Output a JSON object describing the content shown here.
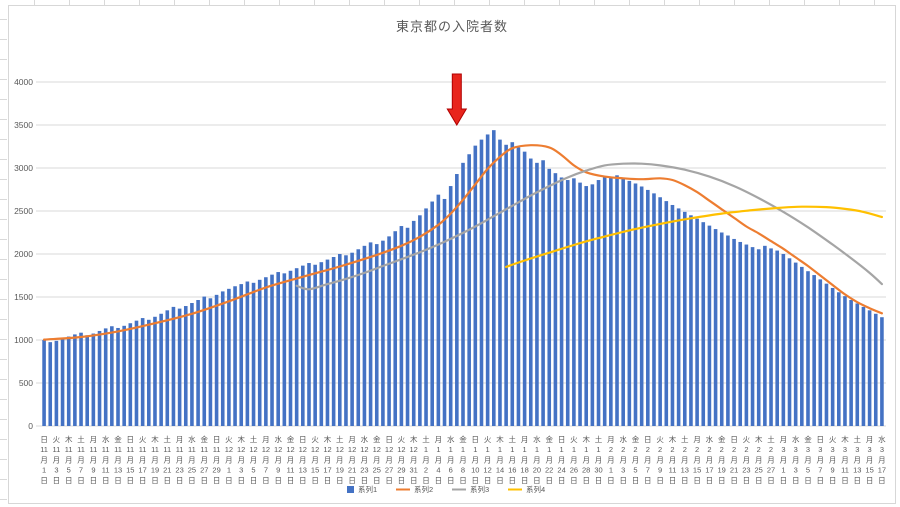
{
  "chart_data": {
    "type": "bar",
    "title": "東京都の入院者数",
    "grid": true,
    "legend_position": "bottom",
    "colors": {
      "grid": "#d9d9d9",
      "axis_text": "#595959",
      "title_text": "#595959"
    },
    "y_axis": {
      "min": 0,
      "max": 4000,
      "step": 500,
      "tick_labels": [
        "0",
        "500",
        "1000",
        "1500",
        "2000",
        "2500",
        "3000",
        "3500",
        "4000"
      ]
    },
    "x_axis": {
      "interval_days": 2,
      "tick_labels": [
        [
          "日",
          "11",
          "月",
          "1",
          "日"
        ],
        [
          "火",
          "11",
          "月",
          "3",
          "日"
        ],
        [
          "木",
          "11",
          "月",
          "5",
          "日"
        ],
        [
          "土",
          "11",
          "月",
          "7",
          "日"
        ],
        [
          "月",
          "11",
          "月",
          "9",
          "日"
        ],
        [
          "水",
          "11",
          "月",
          "11",
          "日"
        ],
        [
          "金",
          "11",
          "月",
          "13",
          "日"
        ],
        [
          "日",
          "11",
          "月",
          "15",
          "日"
        ],
        [
          "火",
          "11",
          "月",
          "17",
          "日"
        ],
        [
          "木",
          "11",
          "月",
          "19",
          "日"
        ],
        [
          "土",
          "11",
          "月",
          "21",
          "日"
        ],
        [
          "月",
          "11",
          "月",
          "23",
          "日"
        ],
        [
          "水",
          "11",
          "月",
          "25",
          "日"
        ],
        [
          "金",
          "11",
          "月",
          "27",
          "日"
        ],
        [
          "日",
          "11",
          "月",
          "29",
          "日"
        ],
        [
          "火",
          "12",
          "月",
          "1",
          "日"
        ],
        [
          "木",
          "12",
          "月",
          "3",
          "日"
        ],
        [
          "土",
          "12",
          "月",
          "5",
          "日"
        ],
        [
          "月",
          "12",
          "月",
          "7",
          "日"
        ],
        [
          "水",
          "12",
          "月",
          "9",
          "日"
        ],
        [
          "金",
          "12",
          "月",
          "11",
          "日"
        ],
        [
          "日",
          "12",
          "月",
          "13",
          "日"
        ],
        [
          "火",
          "12",
          "月",
          "15",
          "日"
        ],
        [
          "木",
          "12",
          "月",
          "17",
          "日"
        ],
        [
          "土",
          "12",
          "月",
          "19",
          "日"
        ],
        [
          "月",
          "12",
          "月",
          "21",
          "日"
        ],
        [
          "水",
          "12",
          "月",
          "23",
          "日"
        ],
        [
          "金",
          "12",
          "月",
          "25",
          "日"
        ],
        [
          "日",
          "12",
          "月",
          "27",
          "日"
        ],
        [
          "火",
          "12",
          "月",
          "29",
          "日"
        ],
        [
          "木",
          "12",
          "月",
          "31",
          "日"
        ],
        [
          "土",
          "1",
          "月",
          "2",
          "日"
        ],
        [
          "月",
          "1",
          "月",
          "4",
          "日"
        ],
        [
          "水",
          "1",
          "月",
          "6",
          "日"
        ],
        [
          "金",
          "1",
          "月",
          "8",
          "日"
        ],
        [
          "日",
          "1",
          "月",
          "10",
          "日"
        ],
        [
          "火",
          "1",
          "月",
          "12",
          "日"
        ],
        [
          "木",
          "1",
          "月",
          "14",
          "日"
        ],
        [
          "土",
          "1",
          "月",
          "16",
          "日"
        ],
        [
          "月",
          "1",
          "月",
          "18",
          "日"
        ],
        [
          "水",
          "1",
          "月",
          "20",
          "日"
        ],
        [
          "金",
          "1",
          "月",
          "22",
          "日"
        ],
        [
          "日",
          "1",
          "月",
          "24",
          "日"
        ],
        [
          "火",
          "1",
          "月",
          "26",
          "日"
        ],
        [
          "木",
          "1",
          "月",
          "28",
          "日"
        ],
        [
          "土",
          "1",
          "月",
          "30",
          "日"
        ],
        [
          "月",
          "2",
          "月",
          "1",
          "日"
        ],
        [
          "水",
          "2",
          "月",
          "3",
          "日"
        ],
        [
          "金",
          "2",
          "月",
          "5",
          "日"
        ],
        [
          "日",
          "2",
          "月",
          "7",
          "日"
        ],
        [
          "火",
          "2",
          "月",
          "9",
          "日"
        ],
        [
          "木",
          "2",
          "月",
          "11",
          "日"
        ],
        [
          "土",
          "2",
          "月",
          "13",
          "日"
        ],
        [
          "月",
          "2",
          "月",
          "15",
          "日"
        ],
        [
          "水",
          "2",
          "月",
          "17",
          "日"
        ],
        [
          "金",
          "2",
          "月",
          "19",
          "日"
        ],
        [
          "日",
          "2",
          "月",
          "21",
          "日"
        ],
        [
          "火",
          "2",
          "月",
          "23",
          "日"
        ],
        [
          "木",
          "2",
          "月",
          "25",
          "日"
        ],
        [
          "土",
          "2",
          "月",
          "27",
          "日"
        ],
        [
          "月",
          "3",
          "月",
          "1",
          "日"
        ],
        [
          "水",
          "3",
          "月",
          "3",
          "日"
        ],
        [
          "金",
          "3",
          "月",
          "5",
          "日"
        ],
        [
          "日",
          "3",
          "月",
          "7",
          "日"
        ],
        [
          "火",
          "3",
          "月",
          "9",
          "日"
        ],
        [
          "木",
          "3",
          "月",
          "11",
          "日"
        ],
        [
          "土",
          "3",
          "月",
          "13",
          "日"
        ],
        [
          "月",
          "3",
          "月",
          "15",
          "日"
        ],
        [
          "水",
          "3",
          "月",
          "17",
          "日"
        ]
      ]
    },
    "bar_series": {
      "name": "系列1",
      "color": "#4472C4",
      "values": [
        1000,
        975,
        990,
        1010,
        1040,
        1065,
        1085,
        1055,
        1075,
        1105,
        1135,
        1160,
        1140,
        1165,
        1195,
        1225,
        1255,
        1235,
        1270,
        1305,
        1345,
        1385,
        1365,
        1395,
        1430,
        1465,
        1505,
        1485,
        1525,
        1565,
        1595,
        1625,
        1650,
        1680,
        1665,
        1700,
        1730,
        1760,
        1790,
        1775,
        1805,
        1835,
        1865,
        1895,
        1875,
        1905,
        1935,
        1965,
        2000,
        1985,
        2015,
        2055,
        2095,
        2135,
        2115,
        2155,
        2205,
        2265,
        2325,
        2305,
        2385,
        2450,
        2530,
        2610,
        2690,
        2640,
        2790,
        2930,
        3060,
        3160,
        3260,
        3330,
        3390,
        3440,
        3330,
        3270,
        3300,
        3240,
        3190,
        3110,
        3060,
        3090,
        2990,
        2940,
        2890,
        2860,
        2880,
        2830,
        2790,
        2810,
        2860,
        2900,
        2890,
        2915,
        2880,
        2850,
        2820,
        2785,
        2745,
        2705,
        2660,
        2615,
        2570,
        2530,
        2490,
        2450,
        2410,
        2370,
        2330,
        2290,
        2250,
        2215,
        2175,
        2140,
        2110,
        2080,
        2055,
        2095,
        2065,
        2040,
        2000,
        1950,
        1900,
        1850,
        1800,
        1755,
        1705,
        1655,
        1605,
        1555,
        1510,
        1465,
        1425,
        1385,
        1345,
        1305,
        1265
      ]
    },
    "line_series": [
      {
        "name": "系列2",
        "color": "#ED7D31",
        "points": [
          [
            0,
            1005
          ],
          [
            6,
            1035
          ],
          [
            12,
            1100
          ],
          [
            18,
            1195
          ],
          [
            24,
            1305
          ],
          [
            30,
            1450
          ],
          [
            36,
            1610
          ],
          [
            42,
            1735
          ],
          [
            48,
            1855
          ],
          [
            54,
            1990
          ],
          [
            58,
            2095
          ],
          [
            61,
            2200
          ],
          [
            64,
            2340
          ],
          [
            66,
            2470
          ],
          [
            68,
            2630
          ],
          [
            70,
            2810
          ],
          [
            72,
            2990
          ],
          [
            74,
            3130
          ],
          [
            76,
            3230
          ],
          [
            79,
            3265
          ],
          [
            82,
            3240
          ],
          [
            84,
            3150
          ],
          [
            86,
            3030
          ],
          [
            88,
            2950
          ],
          [
            91,
            2900
          ],
          [
            94,
            2880
          ],
          [
            97,
            2870
          ],
          [
            100,
            2880
          ],
          [
            102,
            2860
          ],
          [
            104,
            2800
          ],
          [
            106,
            2720
          ],
          [
            108,
            2620
          ],
          [
            110,
            2520
          ],
          [
            112,
            2420
          ],
          [
            114,
            2320
          ],
          [
            116,
            2240
          ],
          [
            118,
            2150
          ],
          [
            120,
            2060
          ],
          [
            122,
            1960
          ],
          [
            124,
            1860
          ],
          [
            126,
            1750
          ],
          [
            128,
            1640
          ],
          [
            130,
            1530
          ],
          [
            132,
            1440
          ],
          [
            134,
            1370
          ],
          [
            136,
            1310
          ]
        ]
      },
      {
        "name": "系列3",
        "color": "#A5A5A5",
        "points": [
          [
            41,
            1630
          ],
          [
            43,
            1590
          ],
          [
            46,
            1650
          ],
          [
            49,
            1710
          ],
          [
            52,
            1780
          ],
          [
            55,
            1860
          ],
          [
            58,
            1940
          ],
          [
            61,
            2020
          ],
          [
            64,
            2110
          ],
          [
            67,
            2210
          ],
          [
            70,
            2320
          ],
          [
            73,
            2440
          ],
          [
            76,
            2560
          ],
          [
            79,
            2680
          ],
          [
            82,
            2790
          ],
          [
            85,
            2890
          ],
          [
            88,
            2970
          ],
          [
            91,
            3030
          ],
          [
            94,
            3050
          ],
          [
            97,
            3050
          ],
          [
            100,
            3030
          ],
          [
            104,
            2980
          ],
          [
            108,
            2900
          ],
          [
            112,
            2790
          ],
          [
            116,
            2650
          ],
          [
            120,
            2490
          ],
          [
            124,
            2310
          ],
          [
            128,
            2110
          ],
          [
            131,
            1950
          ],
          [
            134,
            1780
          ],
          [
            136,
            1650
          ]
        ]
      },
      {
        "name": "系列4",
        "color": "#FFC000",
        "points": [
          [
            75,
            1850
          ],
          [
            78,
            1925
          ],
          [
            82,
            2015
          ],
          [
            86,
            2105
          ],
          [
            90,
            2185
          ],
          [
            95,
            2275
          ],
          [
            100,
            2350
          ],
          [
            105,
            2415
          ],
          [
            110,
            2470
          ],
          [
            115,
            2510
          ],
          [
            119,
            2535
          ],
          [
            123,
            2550
          ],
          [
            127,
            2545
          ],
          [
            130,
            2525
          ],
          [
            133,
            2490
          ],
          [
            136,
            2430
          ]
        ]
      }
    ],
    "legend": {
      "entries": [
        {
          "label": "系列1",
          "color": "#4472C4",
          "marker": "bar"
        },
        {
          "label": "系列2",
          "color": "#ED7D31",
          "marker": "line"
        },
        {
          "label": "系列3",
          "color": "#A5A5A5",
          "marker": "line"
        },
        {
          "label": "系列4",
          "color": "#FFC000",
          "marker": "line"
        }
      ]
    },
    "annotation": {
      "shape": "down-arrow",
      "at_bar_index": 67,
      "fill": "#e8251d",
      "stroke": "#b00000"
    }
  }
}
